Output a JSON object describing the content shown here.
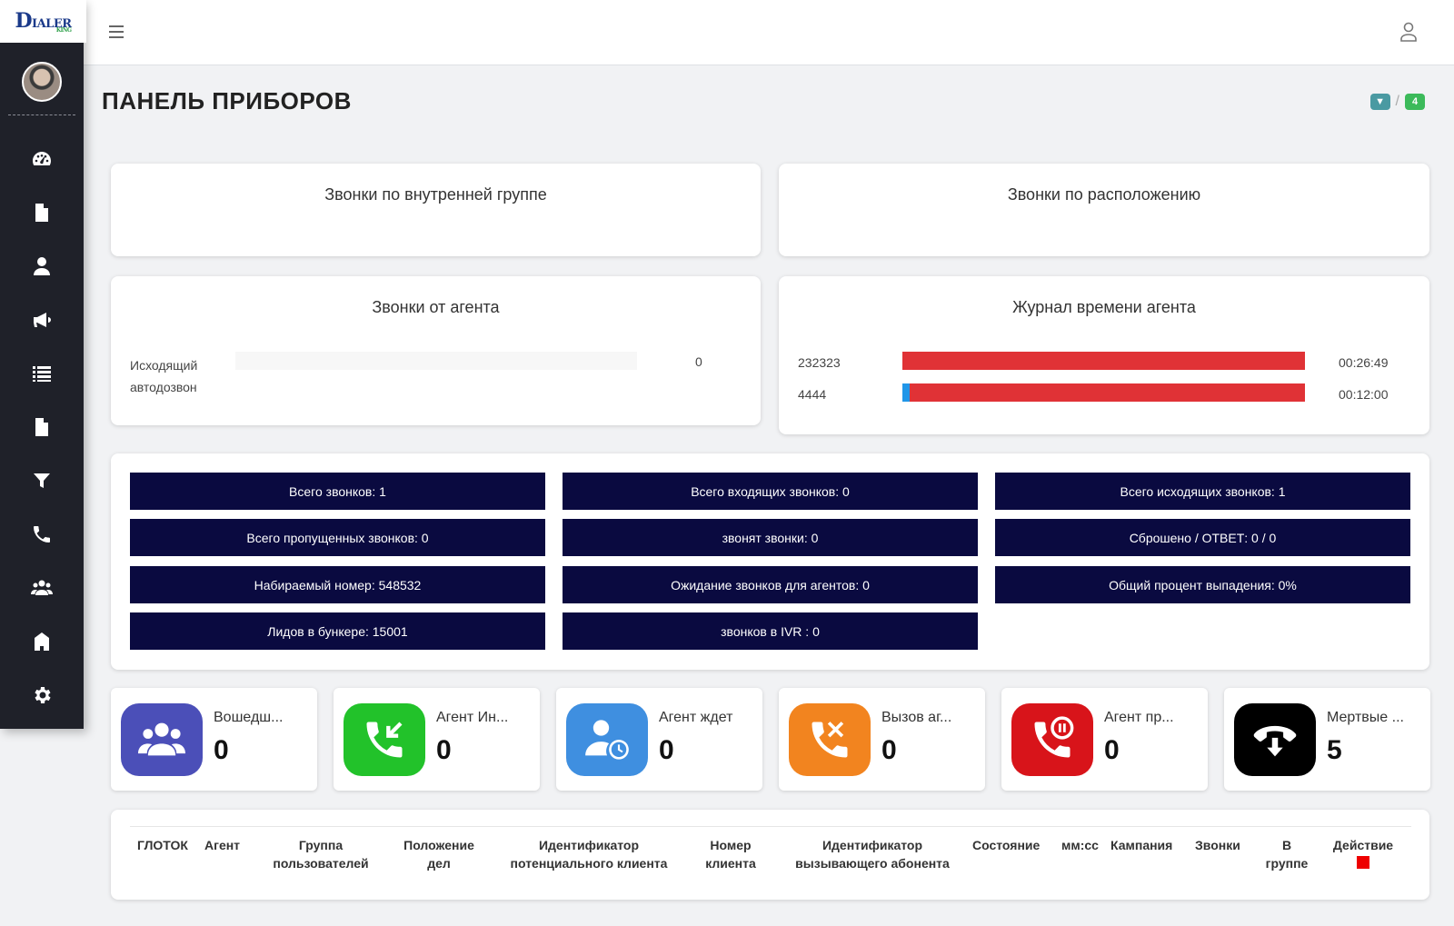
{
  "app": {
    "logo_text": "IALER",
    "logo_letter": "D",
    "logo_sub": "KING"
  },
  "page": {
    "title": "ПАНЕЛЬ ПРИБОРОВ",
    "badge_left": "▼",
    "separator": "/",
    "badge_right": "4"
  },
  "sidebar": {
    "items": [
      "dashboard-icon",
      "file-icon",
      "user-icon",
      "megaphone-icon",
      "list-icon",
      "document-icon",
      "filter-icon",
      "phone-icon",
      "group-icon",
      "building-icon",
      "gear-icon"
    ]
  },
  "cards": {
    "group_calls_title": "Звонки по внутренней группе",
    "location_calls_title": "Звонки по расположению",
    "agent_calls": {
      "title": "Звонки от агента",
      "rows": [
        {
          "label_line1": "Исходящий",
          "label_line2": "автодозвон",
          "value": "0"
        }
      ]
    },
    "agent_time": {
      "title": "Журнал времени агента",
      "rows": [
        {
          "label": "232323",
          "value": "00:26:49"
        },
        {
          "label": "4444",
          "value": "00:12:00"
        }
      ]
    }
  },
  "stats": [
    "Всего звонков: 1",
    "Всего входящих звонков: 0",
    "Всего исходящих звонков: 1",
    "Всего пропущенных звонков: 0",
    "звонят звонки: 0",
    "Сброшено / ОТВЕТ: 0 / 0",
    "Набираемый номер: 548532",
    "Ожидание звонков для агентов: 0",
    "Общий процент выпадения: 0%",
    "Лидов в бункере: 15001",
    "звонков в IVR : 0"
  ],
  "tiles": [
    {
      "label": "Вошедш...",
      "value": "0",
      "color": "#4b4fb8",
      "icon": "group-icon"
    },
    {
      "label": "Агент Ин...",
      "value": "0",
      "color": "#22c22a",
      "icon": "incoming-call-icon"
    },
    {
      "label": "Агент ждет",
      "value": "0",
      "color": "#3f8fe0",
      "icon": "user-clock-icon"
    },
    {
      "label": "Вызов аг...",
      "value": "0",
      "color": "#f2841f",
      "icon": "missed-call-icon"
    },
    {
      "label": "Агент пр...",
      "value": "0",
      "color": "#d8141a",
      "icon": "paused-call-icon"
    },
    {
      "label": "Мертвые ...",
      "value": "5",
      "color": "#000000",
      "icon": "hangup-icon"
    }
  ],
  "table": {
    "headers": [
      {
        "line1": "ГЛОТОК",
        "line2": ""
      },
      {
        "line1": "Агент",
        "line2": ""
      },
      {
        "line1": "Группа",
        "line2": "пользователей"
      },
      {
        "line1": "Положение",
        "line2": "дел"
      },
      {
        "line1": "Идентификатор",
        "line2": "потенциального клиента"
      },
      {
        "line1": "Номер",
        "line2": "клиента"
      },
      {
        "line1": "Идентификатор",
        "line2": "вызывающего абонента"
      },
      {
        "line1": "Состояние",
        "line2": ""
      },
      {
        "line1": "мм:сс",
        "line2": ""
      },
      {
        "line1": "Кампания",
        "line2": ""
      },
      {
        "line1": "Звонки",
        "line2": ""
      },
      {
        "line1": "В",
        "line2": "группе"
      },
      {
        "line1": "Действие",
        "line2": ""
      }
    ]
  }
}
